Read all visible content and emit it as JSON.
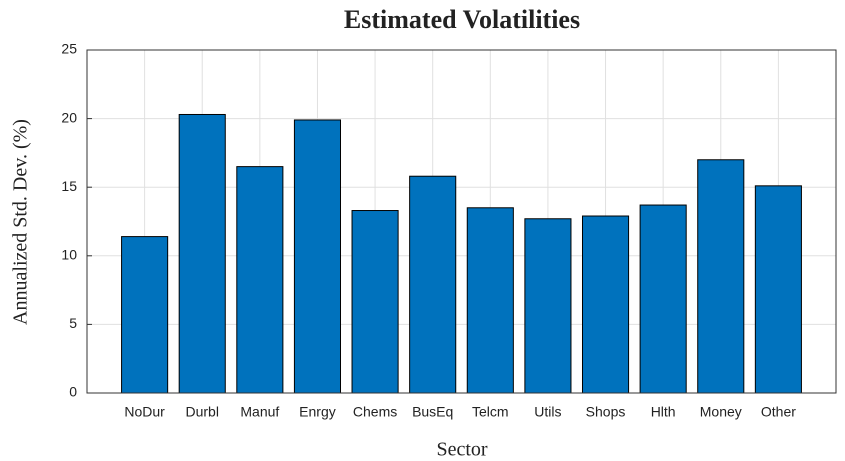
{
  "chart_data": {
    "type": "bar",
    "title": "Estimated Volatilities",
    "xlabel": "Sector",
    "ylabel": "Annualized Std. Dev. (%)",
    "categories": [
      "NoDur",
      "Durbl",
      "Manuf",
      "Enrgy",
      "Chems",
      "BusEq",
      "Telcm",
      "Utils",
      "Shops",
      "Hlth",
      "Money",
      "Other"
    ],
    "values": [
      11.4,
      20.3,
      16.5,
      19.9,
      13.3,
      15.8,
      13.5,
      12.7,
      12.9,
      13.7,
      17.0,
      15.1
    ],
    "color": "#0072bd",
    "ylim": [
      0,
      25
    ],
    "yticks": [
      0,
      5,
      10,
      15,
      20,
      25
    ],
    "grid": true
  }
}
